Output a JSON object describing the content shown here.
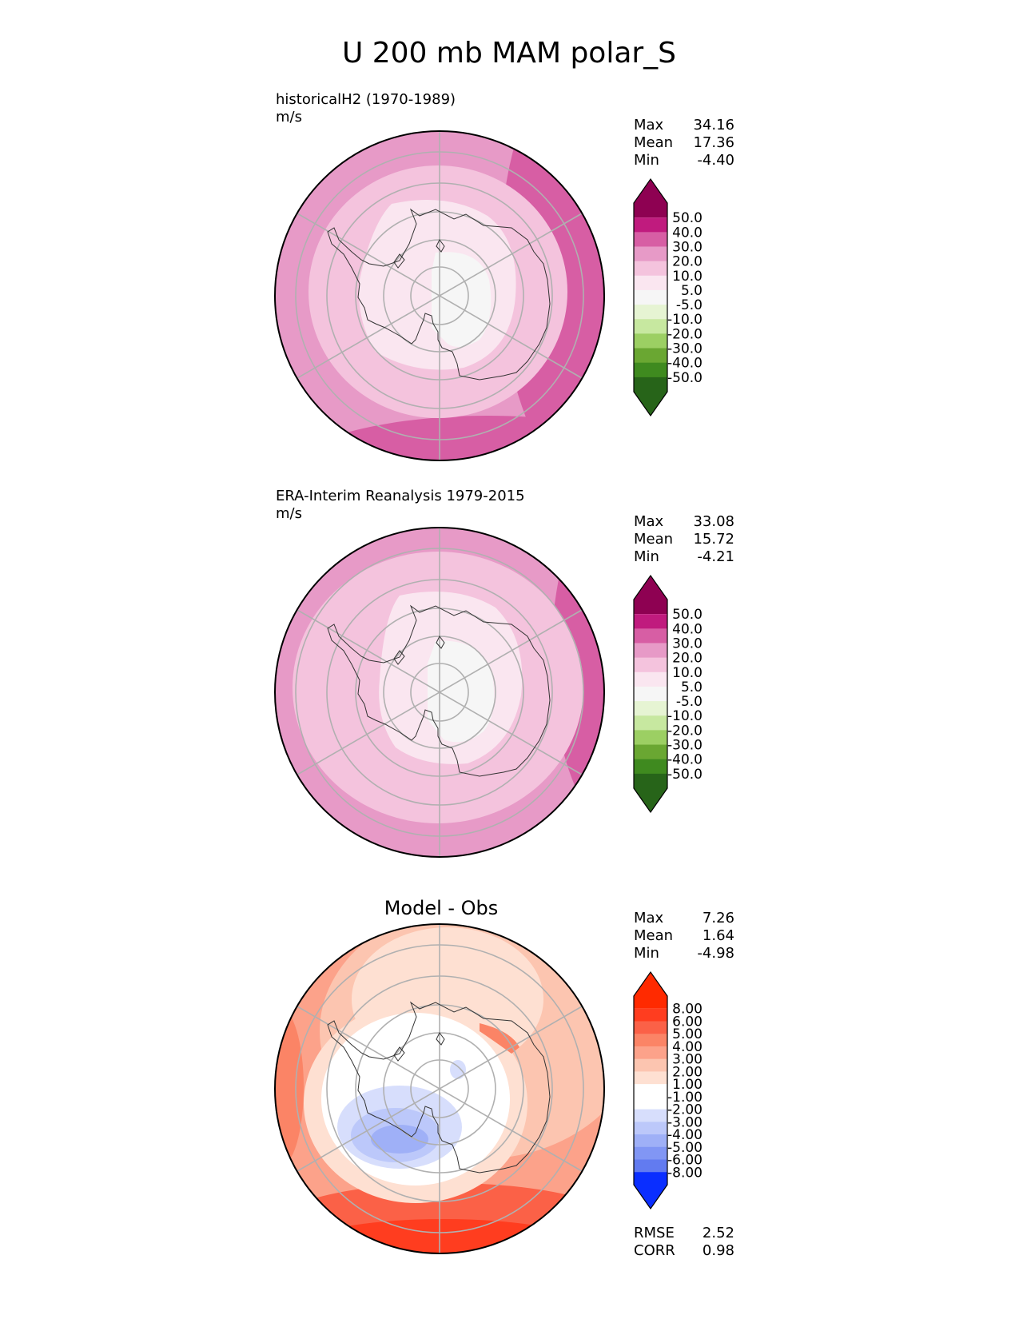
{
  "title": "U 200 mb MAM polar_S",
  "colors": {
    "grid": "#b0b0b0",
    "coast": "#333333",
    "outline": "#000000",
    "pink": [
      "#f6f6f6",
      "#fae6f0",
      "#f4c3dd",
      "#e79ac7",
      "#d75ea4",
      "#c01b7e",
      "#8e0152"
    ],
    "green": [
      "#f6f6f6",
      "#e6f4d3",
      "#c7e8a0",
      "#9ccf63",
      "#6aa732",
      "#3f8a1f",
      "#276419"
    ],
    "red": [
      "#ffffff",
      "#fee0d2",
      "#fcc5b0",
      "#fca28a",
      "#fb8466",
      "#fb6147",
      "#ff3d1f",
      "#ff2a00"
    ],
    "blue": [
      "#ffffff",
      "#d7defc",
      "#bcc8fa",
      "#9fb0f7",
      "#8196f4",
      "#627bf0",
      "#3f5af0",
      "#0a2eff"
    ]
  },
  "panels": [
    {
      "id": "model",
      "heading_line1": "historicalH2 (1970-1989)",
      "heading_line2": "m/s",
      "stats": {
        "max_label": "Max",
        "max": "34.16",
        "mean_label": "Mean",
        "mean": "17.36",
        "min_label": "Min",
        "min": "-4.40"
      }
    },
    {
      "id": "obs",
      "heading_line1": "ERA-Interim Reanalysis 1979-2015",
      "heading_line2": "m/s",
      "stats": {
        "max_label": "Max",
        "max": "33.08",
        "mean_label": "Mean",
        "mean": "15.72",
        "min_label": "Min",
        "min": "-4.21"
      }
    },
    {
      "id": "diff",
      "heading": "Model - Obs",
      "stats": {
        "max_label": "Max",
        "max": "7.26",
        "mean_label": "Mean",
        "mean": "1.64",
        "min_label": "Min",
        "min": "-4.98"
      },
      "metrics": {
        "rmse_label": "RMSE",
        "rmse": "2.52",
        "corr_label": "CORR",
        "corr": "0.98"
      }
    }
  ],
  "chart_data": [
    {
      "type": "heatmap",
      "projection": "south polar stereographic",
      "title": "historicalH2 (1970-1989)",
      "units": "m/s",
      "colorbar_levels": [
        -50,
        -40,
        -30,
        -20,
        -10,
        -5,
        5,
        10,
        20,
        30,
        40,
        50
      ],
      "colorbar_labels": [
        "50.0",
        "40.0",
        "30.0",
        "20.0",
        "10.0",
        "5.0",
        "-5.0",
        "-10.0",
        "-20.0",
        "-30.0",
        "-40.0",
        "-50.0"
      ],
      "extend": "both",
      "field_summary": {
        "max": 34.16,
        "mean": 17.36,
        "min": -4.4
      }
    },
    {
      "type": "heatmap",
      "projection": "south polar stereographic",
      "title": "ERA-Interim Reanalysis 1979-2015",
      "units": "m/s",
      "colorbar_levels": [
        -50,
        -40,
        -30,
        -20,
        -10,
        -5,
        5,
        10,
        20,
        30,
        40,
        50
      ],
      "colorbar_labels": [
        "50.0",
        "40.0",
        "30.0",
        "20.0",
        "10.0",
        "5.0",
        "-5.0",
        "-10.0",
        "-20.0",
        "-30.0",
        "-40.0",
        "-50.0"
      ],
      "extend": "both",
      "field_summary": {
        "max": 33.08,
        "mean": 15.72,
        "min": -4.21
      }
    },
    {
      "type": "heatmap",
      "projection": "south polar stereographic",
      "title": "Model - Obs",
      "colorbar_levels": [
        -8,
        -6,
        -5,
        -4,
        -3,
        -2,
        -1,
        1,
        2,
        3,
        4,
        5,
        6,
        8
      ],
      "colorbar_labels": [
        "8.00",
        "6.00",
        "5.00",
        "4.00",
        "3.00",
        "2.00",
        "1.00",
        "-1.00",
        "-2.00",
        "-3.00",
        "-4.00",
        "-5.00",
        "-6.00",
        "-8.00"
      ],
      "extend": "both",
      "field_summary": {
        "max": 7.26,
        "mean": 1.64,
        "min": -4.98,
        "rmse": 2.52,
        "corr": 0.98
      }
    }
  ]
}
